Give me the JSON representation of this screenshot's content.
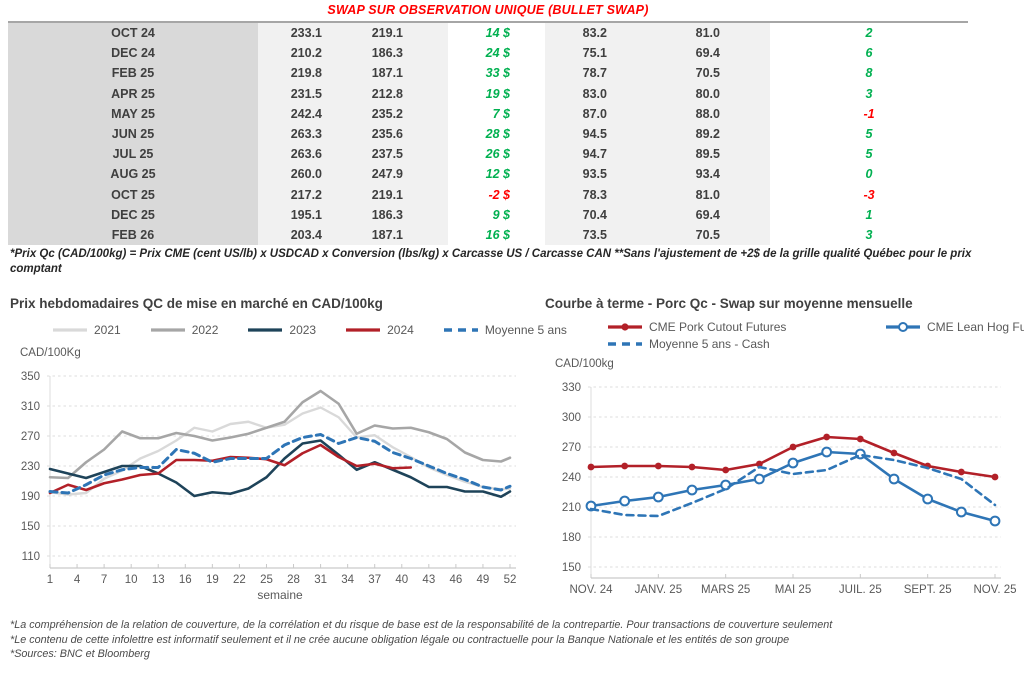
{
  "table_title": "SWAP SUR OBSERVATION UNIQUE (BULLET SWAP)",
  "swap_table": {
    "rows": [
      [
        "OCT 24",
        "233.1",
        "219.1",
        "14 $",
        "83.2",
        "81.0",
        "2"
      ],
      [
        "DEC 24",
        "210.2",
        "186.3",
        "24 $",
        "75.1",
        "69.4",
        "6"
      ],
      [
        "FEB 25",
        "219.8",
        "187.1",
        "33 $",
        "78.7",
        "70.5",
        "8"
      ],
      [
        "APR 25",
        "231.5",
        "212.8",
        "19 $",
        "83.0",
        "80.0",
        "3"
      ],
      [
        "MAY 25",
        "242.4",
        "235.2",
        "7 $",
        "87.0",
        "88.0",
        "-1"
      ],
      [
        "JUN 25",
        "263.3",
        "235.6",
        "28 $",
        "94.5",
        "89.2",
        "5"
      ],
      [
        "JUL 25",
        "263.6",
        "237.5",
        "26 $",
        "94.7",
        "89.5",
        "5"
      ],
      [
        "AUG 25",
        "260.0",
        "247.9",
        "12 $",
        "93.5",
        "93.4",
        "0"
      ],
      [
        "OCT 25",
        "217.2",
        "219.1",
        "-2 $",
        "78.3",
        "81.0",
        "-3"
      ],
      [
        "DEC 25",
        "195.1",
        "186.3",
        "9 $",
        "70.4",
        "69.4",
        "1"
      ],
      [
        "FEB 26",
        "203.4",
        "187.1",
        "16 $",
        "73.5",
        "70.5",
        "3"
      ]
    ],
    "positive_color": "#00b050",
    "negative_color": "#ff0000"
  },
  "table_footnote": "*Prix Qc (CAD/100kg) = Prix CME (cent US/lb) x USDCAD x Conversion (lbs/kg) x Carcasse US / Carcasse CAN **Sans l'ajustement de +2$ de la grille qualité Québec pour le prix comptant",
  "colors": {
    "title_red": "#ff0000",
    "positive_green": "#00b050",
    "negative_red": "#ff0000",
    "chart_red": "#b22028",
    "chart_blue": "#2e75b6",
    "chart_navy": "#1e4359",
    "gray_2022": "#a6a6a6",
    "gray_2021": "#d9d9d9"
  },
  "chart_data": [
    {
      "type": "line",
      "title": "Prix hebdomadaires QC de mise en marché en CAD/100kg",
      "ylabel": "CAD/100Kg",
      "xlabel": "semaine",
      "ylim": [
        110,
        350
      ],
      "ytick_step": 40,
      "xticks": [
        1,
        4,
        7,
        10,
        13,
        16,
        19,
        22,
        25,
        28,
        31,
        34,
        37,
        40,
        43,
        46,
        49,
        52
      ],
      "grid": true,
      "legend_position": "top",
      "series": [
        {
          "name": "2021",
          "color": "#d9d9d9",
          "width": 2.4,
          "x": [
            1,
            3,
            5,
            7,
            9,
            11,
            13,
            15,
            17,
            19,
            21,
            23,
            25,
            27,
            29,
            31,
            33,
            35,
            37,
            39,
            41,
            43,
            45,
            47,
            49,
            51,
            52
          ],
          "values": [
            195,
            192,
            194,
            213,
            224,
            240,
            250,
            264,
            281,
            276,
            286,
            289,
            281,
            285,
            300,
            308,
            295,
            268,
            271,
            255,
            242,
            228,
            218,
            209,
            202,
            199,
            200
          ]
        },
        {
          "name": "2022",
          "color": "#a6a6a6",
          "width": 2.6,
          "x": [
            1,
            3,
            5,
            7,
            9,
            11,
            13,
            15,
            17,
            19,
            21,
            23,
            25,
            27,
            29,
            31,
            33,
            35,
            37,
            39,
            41,
            43,
            45,
            47,
            49,
            51,
            52
          ],
          "values": [
            215,
            214,
            235,
            252,
            276,
            267,
            267,
            274,
            270,
            264,
            268,
            273,
            281,
            289,
            315,
            330,
            313,
            273,
            284,
            280,
            281,
            275,
            266,
            248,
            238,
            236,
            241
          ]
        },
        {
          "name": "2023",
          "color": "#1e4359",
          "width": 2.6,
          "x": [
            1,
            3,
            5,
            7,
            9,
            11,
            13,
            15,
            17,
            19,
            21,
            23,
            25,
            27,
            29,
            31,
            33,
            35,
            37,
            39,
            41,
            43,
            45,
            47,
            49,
            51,
            52
          ],
          "values": [
            226,
            220,
            214,
            222,
            230,
            230,
            220,
            208,
            190,
            195,
            193,
            200,
            215,
            240,
            260,
            264,
            245,
            225,
            235,
            225,
            215,
            202,
            202,
            196,
            196,
            189,
            196
          ]
        },
        {
          "name": "2024",
          "color": "#b22028",
          "width": 2.6,
          "x": [
            1,
            3,
            5,
            7,
            9,
            11,
            13,
            15,
            17,
            19,
            21,
            23,
            25,
            27,
            29,
            31,
            33,
            35,
            37,
            39,
            41
          ],
          "values": [
            194,
            205,
            198,
            207,
            212,
            218,
            220,
            238,
            238,
            237,
            242,
            241,
            239,
            231,
            247,
            258,
            242,
            230,
            233,
            227,
            228
          ]
        },
        {
          "name": "Moyenne 5 ans",
          "color": "#2e75b6",
          "width": 3,
          "dash": true,
          "x": [
            1,
            3,
            5,
            7,
            9,
            11,
            13,
            15,
            17,
            19,
            21,
            23,
            25,
            27,
            29,
            31,
            33,
            35,
            37,
            39,
            41,
            43,
            45,
            47,
            49,
            51,
            52
          ],
          "values": [
            196,
            194,
            205,
            218,
            225,
            228,
            228,
            252,
            247,
            235,
            240,
            240,
            240,
            258,
            268,
            272,
            260,
            268,
            263,
            248,
            240,
            230,
            220,
            212,
            202,
            198,
            203
          ]
        }
      ]
    },
    {
      "type": "line",
      "title": "Courbe à terme - Porc Qc - Swap sur moyenne mensuelle",
      "ylabel": "CAD/100kg",
      "xlabel": "",
      "ylim": [
        150,
        330
      ],
      "ytick_step": 30,
      "xticks": [
        0,
        2,
        4,
        6,
        8,
        10,
        12
      ],
      "xtick_labels": [
        "NOV. 24",
        "JANV. 25",
        "MARS 25",
        "MAI 25",
        "JUIL. 25",
        "SEPT. 25",
        "NOV. 25"
      ],
      "grid": true,
      "legend_position": "top",
      "series": [
        {
          "name": "CME Pork Cutout Futures",
          "color": "#b22028",
          "width": 2.6,
          "marker": "filled",
          "values": [
            250,
            251,
            251,
            250,
            247,
            253,
            270,
            280,
            278,
            264,
            251,
            245,
            240
          ]
        },
        {
          "name": "CME Lean Hog Futures",
          "color": "#2e75b6",
          "width": 2.6,
          "marker": "open",
          "values": [
            211,
            216,
            220,
            227,
            232,
            238,
            254,
            265,
            263,
            238,
            218,
            205,
            196
          ]
        },
        {
          "name": "Moyenne 5 ans - Cash",
          "color": "#2e75b6",
          "width": 2.6,
          "dash": true,
          "values": [
            208,
            202,
            201,
            214,
            228,
            250,
            243,
            247,
            262,
            257,
            249,
            238,
            212
          ]
        }
      ]
    }
  ],
  "footnotes": [
    "*La compréhension de la relation de couverture, de la corrélation et du risque de base est de la responsabilité de la contrepartie. Pour transactions de couverture seulement",
    "*Le contenu de cette infolettre est informatif seulement et il ne crée aucune obligation légale ou contractuelle pour la Banque Nationale et les entités de son groupe",
    "*Sources: BNC et Bloomberg"
  ]
}
